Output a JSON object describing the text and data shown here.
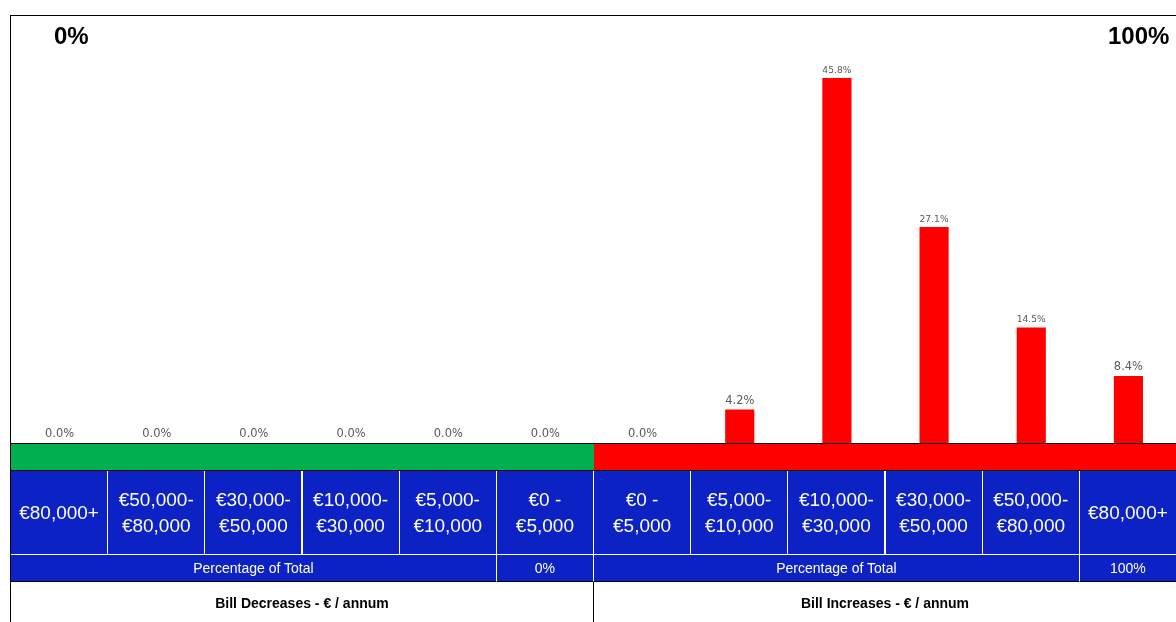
{
  "chart_data": {
    "type": "bar",
    "categories": [
      "€80,000+",
      "€50,000-€80,000",
      "€30,000-€50,000",
      "€10,000-€30,000",
      "€5,000-€10,000",
      "€0 - €5,000",
      "€0 - €5,000",
      "€5,000-€10,000",
      "€10,000-€30,000",
      "€30,000-€50,000",
      "€50,000-€80,000",
      "€80,000+"
    ],
    "values": [
      0.0,
      0.0,
      0.0,
      0.0,
      0.0,
      0.0,
      0.0,
      4.2,
      45.8,
      27.1,
      14.5,
      8.4
    ],
    "value_labels": [
      "0.0%",
      "0.0%",
      "0.0%",
      "0.0%",
      "0.0%",
      "0.0%",
      "0.0%",
      "4.2%",
      "45.8%",
      "27.1%",
      "14.5%",
      "8.4%"
    ],
    "color": "#ff0000",
    "grid": false,
    "legend": false,
    "annotations": [
      "0%",
      "100%",
      "Percentage of Total",
      "0%",
      "Percentage of Total",
      "100%",
      "Bill Decreases - € / annum",
      "Bill Increases - € / annum"
    ]
  }
}
